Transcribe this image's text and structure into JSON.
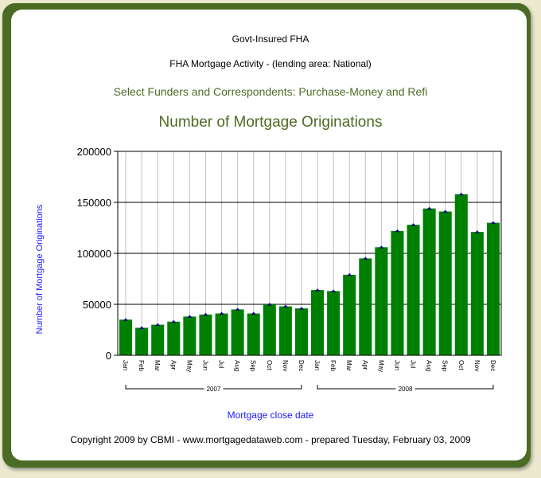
{
  "header": {
    "line1": "Govt-Insured FHA",
    "line2": "FHA Mortgage Activity - (lending area: National)",
    "line3": "Select Funders and Correspondents:  Purchase-Money and Refi"
  },
  "footer": {
    "copyright": "Copyright 2009 by CBMI - www.mortgagedataweb.com - prepared Tuesday, February 03, 2009"
  },
  "colors": {
    "frame": "#4b6b24",
    "bar": "#008000",
    "marker": "#00007f",
    "axis_label": "#1a1aff"
  },
  "chart_data": {
    "type": "bar",
    "title": "Number of Mortgage Originations",
    "xlabel": "Mortgage close date",
    "ylabel": "Number of Mortgage Originations",
    "ylim": [
      0,
      200000
    ],
    "yticks": [
      "0",
      "50000",
      "100000",
      "150000",
      "200000"
    ],
    "grid": true,
    "categories": [
      "Jan",
      "Feb",
      "Mar",
      "Apr",
      "May",
      "Jun",
      "Jul",
      "Aug",
      "Sep",
      "Oct",
      "Nov",
      "Dec",
      "Jan",
      "Feb",
      "Mar",
      "Apr",
      "May",
      "Jun",
      "Jul",
      "Aug",
      "Sep",
      "Oct",
      "Nov",
      "Dec"
    ],
    "groups": [
      {
        "label": "2007",
        "start": 0,
        "end": 11
      },
      {
        "label": "2008",
        "start": 12,
        "end": 23
      }
    ],
    "values": [
      35000,
      27000,
      30000,
      33000,
      38000,
      40000,
      41000,
      45000,
      41000,
      50000,
      48000,
      46000,
      64000,
      63000,
      79000,
      95000,
      106000,
      122000,
      128000,
      144000,
      141000,
      158000,
      121000,
      130000
    ]
  }
}
